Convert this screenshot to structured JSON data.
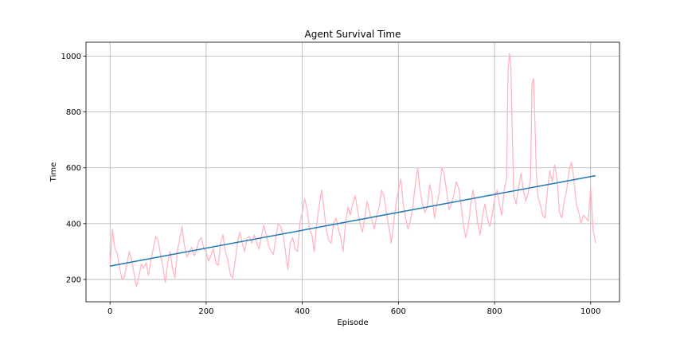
{
  "chart_data": {
    "type": "line",
    "title": "Agent Survival Time",
    "xlabel": "Episode",
    "ylabel": "Time",
    "xlim": [
      -50,
      1060
    ],
    "ylim": [
      120,
      1050
    ],
    "xticks": [
      0,
      200,
      400,
      600,
      800,
      1000
    ],
    "yticks": [
      200,
      400,
      600,
      800,
      1000
    ],
    "grid": true,
    "series": [
      {
        "kind": "raw",
        "color": "#ffb6c1",
        "x": [
          0,
          5,
          10,
          15,
          20,
          25,
          30,
          35,
          40,
          45,
          50,
          55,
          60,
          65,
          70,
          75,
          80,
          85,
          90,
          95,
          100,
          105,
          110,
          115,
          120,
          125,
          130,
          135,
          140,
          145,
          150,
          155,
          160,
          165,
          170,
          175,
          180,
          185,
          190,
          195,
          200,
          205,
          210,
          215,
          220,
          225,
          230,
          235,
          240,
          245,
          250,
          255,
          260,
          265,
          270,
          275,
          280,
          285,
          290,
          295,
          300,
          305,
          310,
          315,
          320,
          325,
          330,
          335,
          340,
          345,
          350,
          355,
          360,
          365,
          370,
          375,
          380,
          385,
          390,
          395,
          400,
          405,
          410,
          415,
          420,
          425,
          430,
          435,
          440,
          445,
          450,
          455,
          460,
          465,
          470,
          475,
          480,
          485,
          490,
          495,
          500,
          505,
          510,
          515,
          520,
          525,
          530,
          535,
          540,
          545,
          550,
          555,
          560,
          565,
          570,
          575,
          580,
          585,
          590,
          595,
          600,
          605,
          610,
          615,
          620,
          625,
          630,
          635,
          640,
          645,
          650,
          655,
          660,
          665,
          670,
          675,
          680,
          685,
          690,
          695,
          700,
          705,
          710,
          715,
          720,
          725,
          730,
          735,
          740,
          745,
          750,
          755,
          760,
          765,
          770,
          775,
          780,
          785,
          790,
          795,
          800,
          805,
          810,
          815,
          820,
          825,
          828,
          831,
          834,
          837,
          840,
          845,
          850,
          855,
          860,
          865,
          870,
          875,
          878,
          881,
          884,
          887,
          890,
          895,
          900,
          905,
          910,
          915,
          920,
          925,
          930,
          935,
          940,
          945,
          950,
          955,
          960,
          965,
          970,
          975,
          980,
          985,
          990,
          995,
          1000,
          1005,
          1010
        ],
        "y": [
          250,
          380,
          310,
          295,
          240,
          200,
          210,
          255,
          300,
          270,
          220,
          175,
          210,
          255,
          240,
          260,
          215,
          270,
          310,
          355,
          340,
          290,
          245,
          190,
          260,
          300,
          240,
          205,
          300,
          345,
          390,
          320,
          280,
          300,
          315,
          285,
          305,
          340,
          350,
          310,
          300,
          265,
          285,
          310,
          260,
          250,
          330,
          360,
          300,
          270,
          220,
          205,
          260,
          330,
          370,
          330,
          300,
          345,
          355,
          330,
          360,
          330,
          310,
          355,
          395,
          360,
          320,
          300,
          290,
          350,
          400,
          390,
          360,
          300,
          235,
          330,
          350,
          310,
          300,
          400,
          440,
          490,
          450,
          380,
          360,
          300,
          400,
          460,
          520,
          450,
          380,
          340,
          330,
          400,
          420,
          380,
          350,
          300,
          400,
          460,
          430,
          470,
          500,
          450,
          400,
          370,
          420,
          480,
          440,
          410,
          380,
          430,
          460,
          520,
          500,
          440,
          390,
          330,
          400,
          470,
          520,
          560,
          470,
          420,
          380,
          410,
          460,
          540,
          600,
          520,
          470,
          440,
          460,
          540,
          500,
          420,
          470,
          510,
          600,
          580,
          520,
          450,
          470,
          500,
          550,
          530,
          470,
          400,
          350,
          390,
          460,
          520,
          480,
          400,
          360,
          430,
          470,
          420,
          390,
          430,
          490,
          520,
          470,
          430,
          520,
          560,
          950,
          1010,
          960,
          720,
          500,
          470,
          530,
          580,
          520,
          480,
          510,
          560,
          900,
          920,
          760,
          580,
          500,
          470,
          430,
          420,
          520,
          590,
          550,
          610,
          560,
          440,
          420,
          480,
          520,
          590,
          620,
          560,
          470,
          440,
          400,
          430,
          420,
          410,
          530,
          380,
          330
        ]
      },
      {
        "kind": "trend",
        "color": "#1f77b4",
        "x": [
          0,
          1010
        ],
        "y": [
          248,
          572
        ]
      }
    ]
  }
}
